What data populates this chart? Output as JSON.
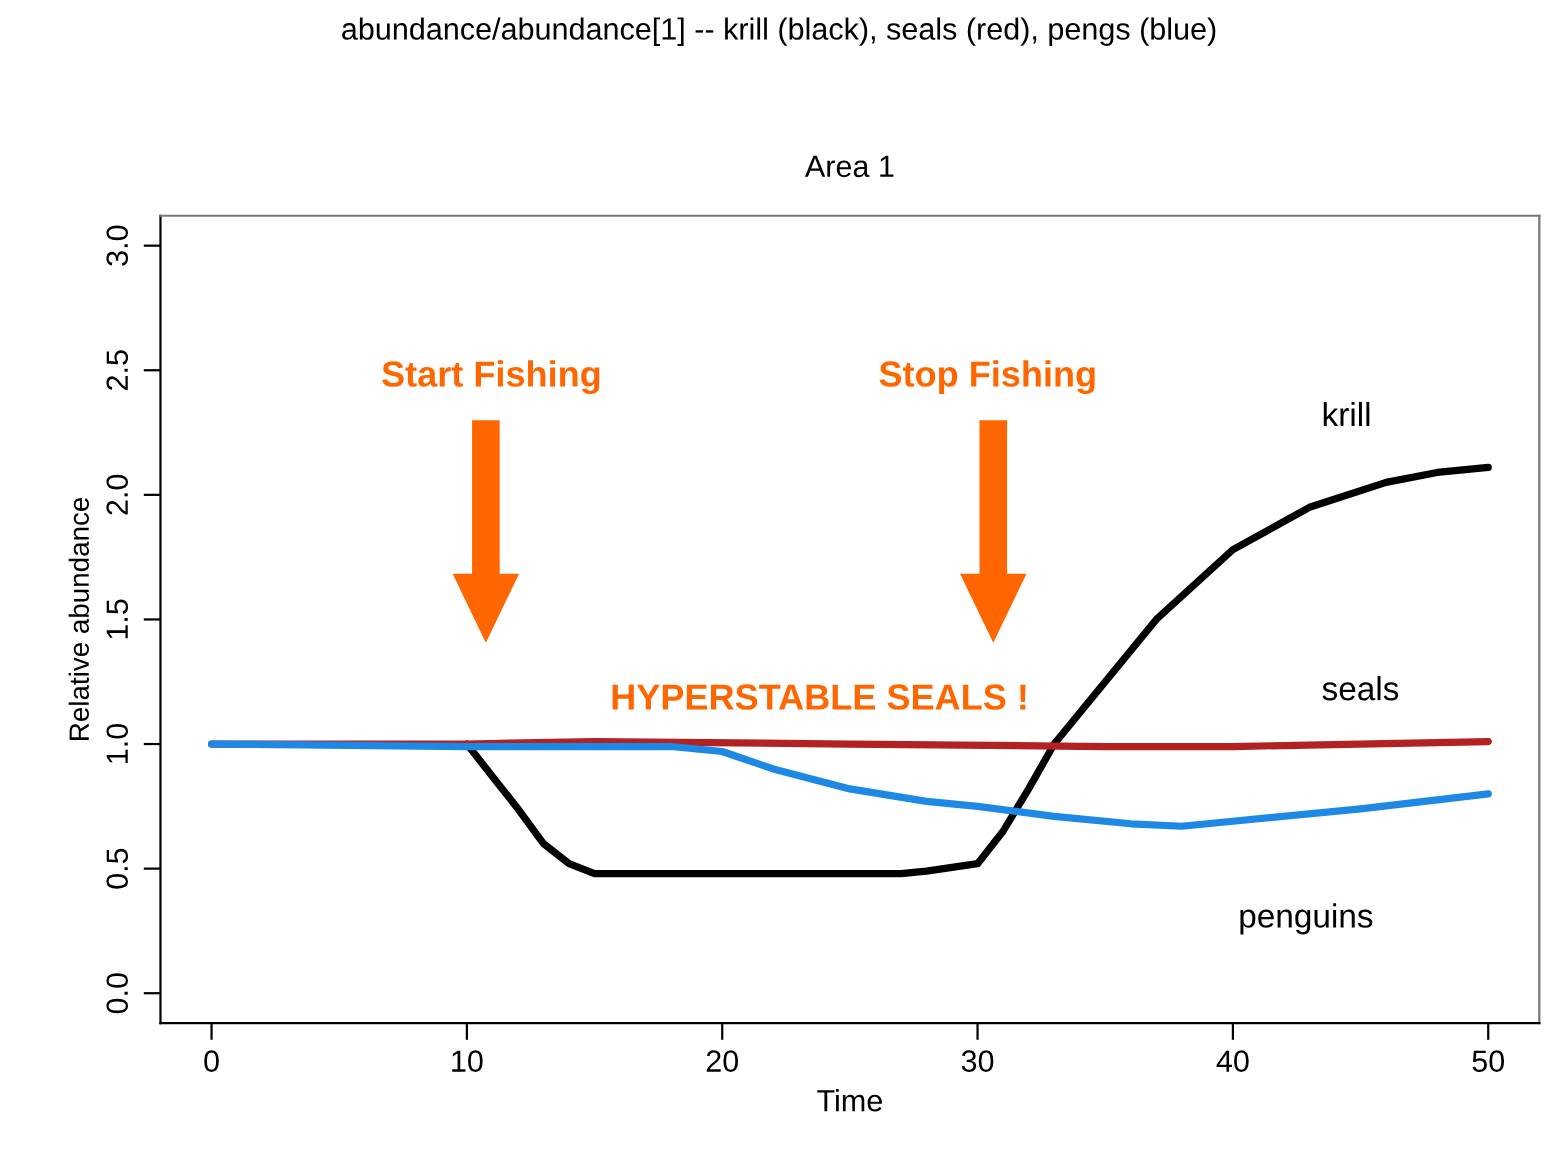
{
  "chart_data": {
    "type": "line",
    "title": "Area 1",
    "subtitle": "abundance/abundance[1] -- krill (black), seals (red), pengs (blue)",
    "xlabel": "Time",
    "ylabel": "Relative abundance",
    "xlim": [
      -2,
      52
    ],
    "ylim": [
      -0.12,
      3.12
    ],
    "xticks": [
      0,
      10,
      20,
      30,
      40,
      50
    ],
    "yticks": [
      {
        "value": 0,
        "label": "0.0"
      },
      {
        "value": 0.5,
        "label": "0.5"
      },
      {
        "value": 1,
        "label": "1.0"
      },
      {
        "value": 1.5,
        "label": "1.5"
      },
      {
        "value": 2,
        "label": "2.0"
      },
      {
        "value": 2.5,
        "label": "2.5"
      },
      {
        "value": 3,
        "label": "3.0"
      }
    ],
    "grid": false,
    "legend": false,
    "marker": "none",
    "line_style": "solid",
    "series": [
      {
        "name": "krill",
        "color": "#000000",
        "x": [
          10,
          11,
          12,
          13,
          14,
          15,
          20,
          25,
          27,
          28,
          30,
          31,
          32,
          33,
          35,
          37,
          40,
          43,
          46,
          48,
          50
        ],
        "values": [
          1.0,
          0.87,
          0.74,
          0.6,
          0.52,
          0.48,
          0.48,
          0.48,
          0.48,
          0.49,
          0.52,
          0.65,
          0.82,
          1.0,
          1.25,
          1.5,
          1.78,
          1.95,
          2.05,
          2.09,
          2.11
        ]
      },
      {
        "name": "seals",
        "color": "#b22222",
        "x": [
          0,
          10,
          15,
          25,
          35,
          40,
          50
        ],
        "values": [
          1.0,
          1.0,
          1.01,
          1.0,
          0.99,
          0.99,
          1.01
        ]
      },
      {
        "name": "penguins",
        "color": "#1e88e5",
        "x": [
          0,
          10,
          18,
          20,
          22,
          25,
          28,
          30,
          33,
          36,
          38,
          40,
          45,
          50
        ],
        "values": [
          1.0,
          0.99,
          0.99,
          0.97,
          0.9,
          0.82,
          0.77,
          0.75,
          0.71,
          0.68,
          0.67,
          0.69,
          0.74,
          0.8
        ]
      }
    ],
    "annotations": [
      "Start Fishing",
      "Stop Fishing",
      "HYPERSTABLE SEALS !"
    ]
  }
}
